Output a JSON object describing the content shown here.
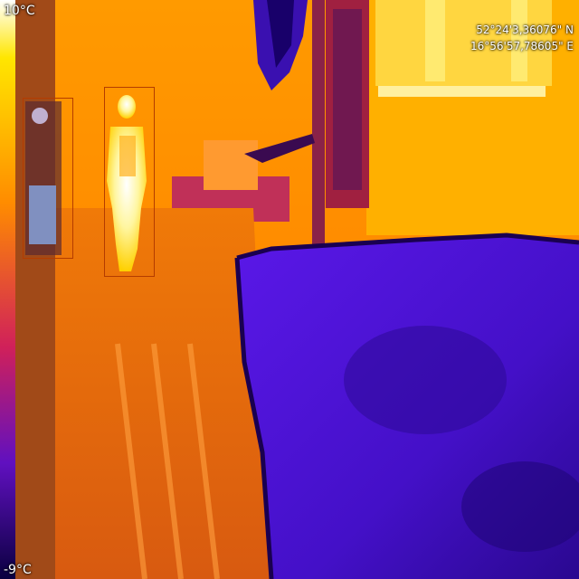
{
  "overlay": {
    "temp_max": "10°C",
    "temp_min": "-9°C",
    "latitude": "52°24'3,36076\" N",
    "longitude": "16°56'57,78605\" E"
  },
  "palette": {
    "hot": "#ffffff",
    "warm": "#ffd000",
    "mid": "#ff7a00",
    "cool": "#b01a60",
    "cold": "#4a10d8",
    "coldest": "#10006a"
  },
  "detections": [
    {
      "label": "",
      "kind": "pedestrian"
    },
    {
      "label": "",
      "kind": "cyclist"
    }
  ]
}
